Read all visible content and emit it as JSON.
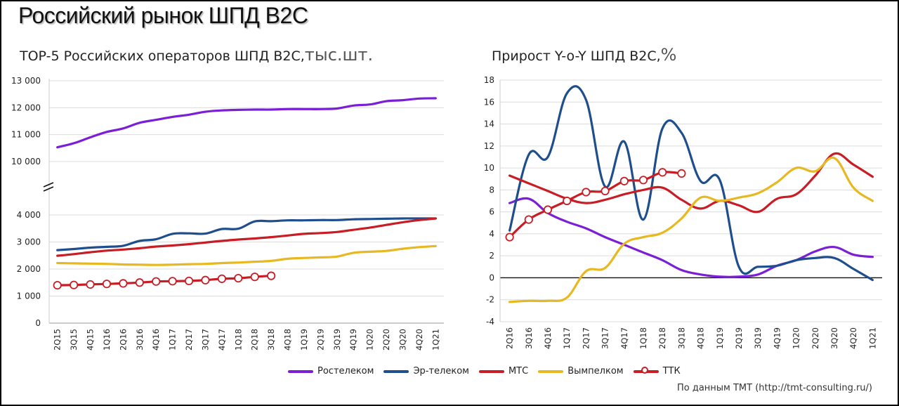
{
  "title": "Российский рынок ШПД B2C",
  "source": "По данным ТМТ (http://tmt-consulting.ru/)",
  "legend": [
    {
      "name": "Ростелеком",
      "color": "#7b1fd6",
      "marker": false
    },
    {
      "name": "Эр-телеком",
      "color": "#1f4e8c",
      "marker": false
    },
    {
      "name": "МТС",
      "color": "#c81d25",
      "marker": false
    },
    {
      "name": "Вымпелком",
      "color": "#e8b820",
      "marker": false
    },
    {
      "name": "ТТК",
      "color": "#c81d25",
      "marker": true
    }
  ],
  "chart_data": [
    {
      "type": "line",
      "title": "TOP-5 Российских операторов ШПД B2C,",
      "unit": "тыс.шт.",
      "axis_break": true,
      "y_ticks_lower": [
        "0",
        "1 000",
        "2 000",
        "3 000",
        "4 000"
      ],
      "y_ticks_upper": [
        "10 000",
        "11 000",
        "12 000",
        "13 000"
      ],
      "x": [
        "2Q15",
        "3Q15",
        "4Q15",
        "1Q16",
        "2Q16",
        "3Q16",
        "4Q16",
        "1Q17",
        "2Q17",
        "3Q17",
        "4Q17",
        "1Q18",
        "2Q18",
        "3Q18",
        "4Q18",
        "1Q19",
        "2Q19",
        "3Q19",
        "4Q19",
        "1Q20",
        "2Q20",
        "3Q20",
        "4Q20",
        "1Q21"
      ],
      "x_labels": [
        "2Q15",
        "3Q15",
        "4Q15",
        "1Q16",
        "2Q16",
        "3Q16",
        "4Q16",
        "1Q17",
        "2Q17",
        "3Q17",
        "4Q17",
        "1Q18",
        "2Q18",
        "3Q18",
        "4Q18",
        "1Q19",
        "2Q19",
        "3Q19",
        "4Q19",
        "1Q20",
        "2Q20",
        "3Q20",
        "4Q20",
        "1Q21"
      ],
      "series": [
        {
          "name": "Ростелеком",
          "color": "#7b1fd6",
          "values": [
            10530,
            10680,
            10900,
            11100,
            11230,
            11440,
            11550,
            11660,
            11740,
            11850,
            11900,
            11920,
            11930,
            11930,
            11950,
            11950,
            11950,
            11970,
            12080,
            12120,
            12240,
            12280,
            12340,
            12350
          ]
        },
        {
          "name": "Эр-телеком",
          "color": "#1f4e8c",
          "values": [
            2700,
            2740,
            2790,
            2820,
            2860,
            3040,
            3100,
            3300,
            3320,
            3310,
            3480,
            3490,
            3760,
            3770,
            3800,
            3800,
            3810,
            3810,
            3840,
            3850,
            3860,
            3870,
            3870,
            3870
          ]
        },
        {
          "name": "МТС",
          "color": "#c81d25",
          "values": [
            2490,
            2550,
            2620,
            2680,
            2720,
            2770,
            2830,
            2870,
            2920,
            2980,
            3040,
            3090,
            3130,
            3180,
            3240,
            3300,
            3330,
            3370,
            3450,
            3530,
            3630,
            3730,
            3810,
            3870
          ]
        },
        {
          "name": "Вымпелком",
          "color": "#e8b820",
          "values": [
            2220,
            2210,
            2200,
            2190,
            2170,
            2160,
            2150,
            2160,
            2180,
            2190,
            2220,
            2240,
            2270,
            2300,
            2380,
            2410,
            2430,
            2460,
            2600,
            2640,
            2670,
            2750,
            2810,
            2850
          ]
        },
        {
          "name": "ТТК",
          "color": "#c81d25",
          "marker": true,
          "values": [
            1400,
            1410,
            1430,
            1450,
            1470,
            1500,
            1540,
            1550,
            1560,
            1590,
            1640,
            1660,
            1710,
            1750,
            null,
            null,
            null,
            null,
            null,
            null,
            null,
            null,
            null,
            null
          ]
        }
      ]
    },
    {
      "type": "line",
      "title": "Прирост Y-o-Y ШПД B2C,",
      "unit": "%",
      "ylim": [
        -4,
        18
      ],
      "y_ticks": [
        "-4",
        "-2",
        "0",
        "2",
        "4",
        "6",
        "8",
        "10",
        "12",
        "14",
        "16",
        "18"
      ],
      "x": [
        "2Q16",
        "3Q16",
        "4Q16",
        "1Q17",
        "2Q17",
        "3Q17",
        "4Q17",
        "1Q18",
        "2Q18",
        "3Q18",
        "4Q18",
        "1Q19",
        "2Q19",
        "3Q19",
        "4Q19",
        "1Q20",
        "2Q20",
        "3Q20",
        "4Q20",
        "1Q21"
      ],
      "x_labels": [
        "2Q16",
        "3Q16",
        "4Q16",
        "1Q17",
        "2Q17",
        "3Q17",
        "4Q17",
        "1Q18",
        "2Q18",
        "3Q18",
        "4Q18",
        "1Q19",
        "2Q19",
        "3Q19",
        "4Q19",
        "1Q20",
        "2Q20",
        "3Q20",
        "4Q20",
        "1Q21"
      ],
      "series": [
        {
          "name": "Ростелеком",
          "color": "#7b1fd6",
          "values": [
            6.8,
            7.2,
            5.9,
            5.1,
            4.5,
            3.7,
            3.0,
            2.3,
            1.6,
            0.7,
            0.3,
            0.1,
            0.1,
            0.3,
            1.1,
            1.6,
            2.4,
            2.8,
            2.1,
            1.9
          ]
        },
        {
          "name": "Эр-телеком",
          "color": "#1f4e8c",
          "values": [
            4.3,
            11.2,
            11.0,
            16.8,
            16.2,
            8.3,
            12.4,
            5.3,
            13.6,
            13.2,
            8.8,
            8.9,
            1.0,
            1.0,
            1.1,
            1.6,
            1.8,
            1.8,
            0.8,
            -0.2
          ]
        },
        {
          "name": "МТС",
          "color": "#c81d25",
          "values": [
            9.3,
            8.6,
            7.9,
            7.2,
            6.8,
            7.1,
            7.6,
            8.0,
            8.2,
            7.1,
            6.3,
            7.0,
            6.6,
            6.0,
            7.2,
            7.6,
            9.3,
            11.3,
            10.3,
            9.2
          ]
        },
        {
          "name": "Вымпелком",
          "color": "#e8b820",
          "values": [
            -2.2,
            -2.1,
            -2.1,
            -1.8,
            0.6,
            0.9,
            3.1,
            3.7,
            4.1,
            5.4,
            7.3,
            7.0,
            7.3,
            7.7,
            8.7,
            10.0,
            9.7,
            10.9,
            8.2,
            7.0
          ]
        },
        {
          "name": "ТТК",
          "color": "#c81d25",
          "marker": true,
          "values": [
            3.7,
            5.3,
            6.2,
            7.0,
            7.8,
            7.9,
            8.8,
            8.9,
            9.6,
            9.5,
            null,
            null,
            null,
            null,
            null,
            null,
            null,
            null,
            null,
            null
          ]
        }
      ]
    }
  ]
}
